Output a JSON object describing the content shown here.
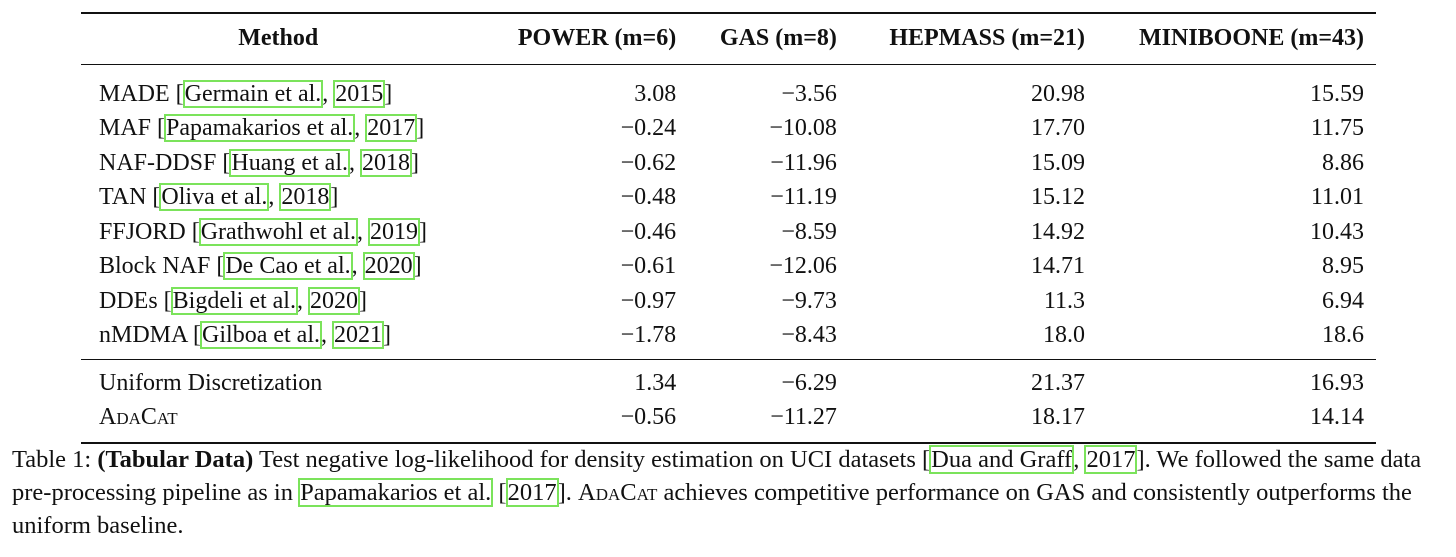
{
  "table": {
    "headers": {
      "method": "Method",
      "power": "POWER (m=6)",
      "gas": "GAS (m=8)",
      "hepmass": "HEPMASS (m=21)",
      "miniboone": "MINIBOONE (m=43)"
    },
    "baselines": [
      {
        "name": "MADE",
        "cite_author": "Germain et al.",
        "cite_year": "2015",
        "power": "3.08",
        "gas": "−3.56",
        "hepmass": "20.98",
        "miniboone": "15.59"
      },
      {
        "name": "MAF",
        "cite_author": "Papamakarios et al.",
        "cite_year": "2017",
        "power": "−0.24",
        "gas": "−10.08",
        "hepmass": "17.70",
        "miniboone": "11.75"
      },
      {
        "name": "NAF-DDSF",
        "cite_author": "Huang et al.",
        "cite_year": "2018",
        "power": "−0.62",
        "gas": "−11.96",
        "hepmass": "15.09",
        "miniboone": "8.86"
      },
      {
        "name": "TAN",
        "cite_author": "Oliva et al.",
        "cite_year": "2018",
        "power": "−0.48",
        "gas": "−11.19",
        "hepmass": "15.12",
        "miniboone": "11.01"
      },
      {
        "name": "FFJORD",
        "cite_author": "Grathwohl et al.",
        "cite_year": "2019",
        "power": "−0.46",
        "gas": "−8.59",
        "hepmass": "14.92",
        "miniboone": "10.43"
      },
      {
        "name": "Block NAF",
        "cite_author": "De Cao et al.",
        "cite_year": "2020",
        "power": "−0.61",
        "gas": "−12.06",
        "hepmass": "14.71",
        "miniboone": "8.95"
      },
      {
        "name": "DDEs",
        "cite_author": "Bigdeli et al.",
        "cite_year": "2020",
        "power": "−0.97",
        "gas": "−9.73",
        "hepmass": "11.3",
        "miniboone": "6.94"
      },
      {
        "name": "nMDMA",
        "cite_author": "Gilboa et al.",
        "cite_year": "2021",
        "power": "−1.78",
        "gas": "−8.43",
        "hepmass": "18.0",
        "miniboone": "18.6"
      }
    ],
    "ours": [
      {
        "name": "Uniform Discretization",
        "power": "1.34",
        "gas": "−6.29",
        "hepmass": "21.37",
        "miniboone": "16.93"
      },
      {
        "name": "AdaCat",
        "power": "−0.56",
        "gas": "−11.27",
        "hepmass": "18.17",
        "miniboone": "14.14"
      }
    ]
  },
  "caption": {
    "label": "Table 1:",
    "title": "(Tabular Data)",
    "text1": " Test negative log-likelihood for density estimation on UCI datasets [",
    "cite1_author": "Dua and Graff",
    "cite1_sep": ", ",
    "cite1_year": "2017",
    "text2": "]. We followed the same data pre-processing pipeline as in ",
    "cite2_author": "Papamakarios et al.",
    "cite2_open": " [",
    "cite2_year": "2017",
    "text3": "]. ",
    "method_name": "AdaCat",
    "text4": " achieves competitive performance on GAS and consistently outperforms the uniform baseline."
  }
}
